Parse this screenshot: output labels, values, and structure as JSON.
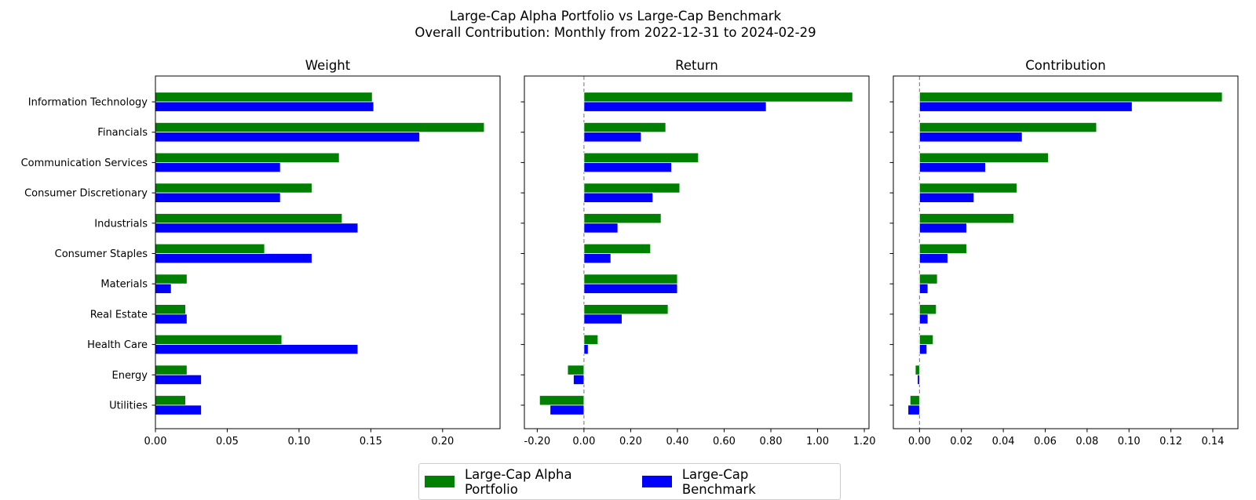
{
  "title": "Large-Cap Alpha Portfolio vs Large-Cap Benchmark",
  "subtitle": "Overall Contribution: Monthly from 2022-12-31 to 2024-02-29",
  "chart_data": {
    "type": "bar",
    "orientation": "horizontal",
    "categories": [
      "Information Technology",
      "Financials",
      "Communication Services",
      "Consumer Discretionary",
      "Industrials",
      "Consumer Staples",
      "Materials",
      "Real Estate",
      "Health Care",
      "Energy",
      "Utilities"
    ],
    "series_names": [
      "Large-Cap Alpha Portfolio",
      "Large-Cap Benchmark"
    ],
    "series_colors": [
      "#008000",
      "#0000ff"
    ],
    "legend_position": "bottom-center",
    "panels": [
      {
        "title": "Weight",
        "xlim": [
          0,
          0.24
        ],
        "ticks": [
          0,
          0.05,
          0.1,
          0.15,
          0.2
        ],
        "tick_labels": [
          "0.00",
          "0.05",
          "0.10",
          "0.15",
          "0.20"
        ],
        "zero_line": false,
        "series": [
          {
            "name": "Large-Cap Alpha Portfolio",
            "values": [
              0.151,
              0.229,
              0.128,
              0.109,
              0.13,
              0.076,
              0.022,
              0.021,
              0.088,
              0.022,
              0.021
            ]
          },
          {
            "name": "Large-Cap Benchmark",
            "values": [
              0.152,
              0.184,
              0.087,
              0.087,
              0.141,
              0.109,
              0.011,
              0.022,
              0.141,
              0.032,
              0.032
            ]
          }
        ]
      },
      {
        "title": "Return",
        "xlim": [
          -0.255,
          1.22
        ],
        "ticks": [
          -0.2,
          0,
          0.2,
          0.4,
          0.6,
          0.8,
          1.0,
          1.2
        ],
        "tick_labels": [
          "-0.20",
          "0.00",
          "0.20",
          "0.40",
          "0.60",
          "0.80",
          "1.00",
          "1.20"
        ],
        "zero_line": true,
        "series": [
          {
            "name": "Large-Cap Alpha Portfolio",
            "values": [
              1.15,
              0.35,
              0.49,
              0.41,
              0.33,
              0.285,
              0.4,
              0.36,
              0.06,
              -0.07,
              -0.19
            ]
          },
          {
            "name": "Large-Cap Benchmark",
            "values": [
              0.78,
              0.245,
              0.375,
              0.295,
              0.145,
              0.115,
              0.4,
              0.163,
              0.018,
              -0.045,
              -0.145
            ]
          }
        ]
      },
      {
        "title": "Contribution",
        "xlim": [
          -0.0125,
          0.152
        ],
        "ticks": [
          0,
          0.02,
          0.04,
          0.06,
          0.08,
          0.1,
          0.12,
          0.14
        ],
        "tick_labels": [
          "0.00",
          "0.02",
          "0.04",
          "0.06",
          "0.08",
          "0.10",
          "0.12",
          "0.14"
        ],
        "zero_line": true,
        "series": [
          {
            "name": "Large-Cap Alpha Portfolio",
            "values": [
              0.1445,
              0.0845,
              0.0615,
              0.0465,
              0.045,
              0.0225,
              0.0085,
              0.008,
              0.0065,
              -0.002,
              -0.0045
            ]
          },
          {
            "name": "Large-Cap Benchmark",
            "values": [
              0.1015,
              0.049,
              0.0315,
              0.026,
              0.0225,
              0.0135,
              0.004,
              0.004,
              0.0035,
              -0.001,
              -0.0055
            ]
          }
        ]
      }
    ]
  }
}
